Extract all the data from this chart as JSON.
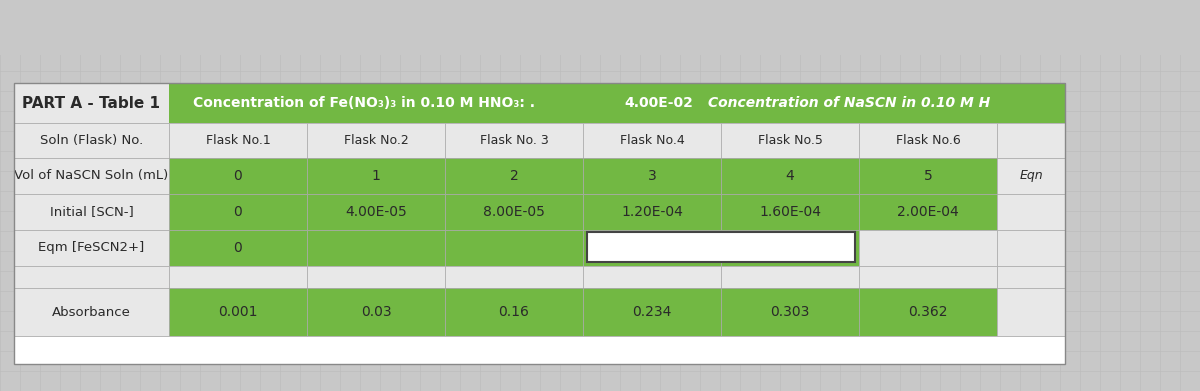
{
  "title": "PART A - Table 1",
  "header_green_text": "Concentration of Fe(NO₃)₃ in 0.10 M HNO₃: .",
  "header_green_value": "4.00E-02",
  "header_green_text2": "Concentration of NaSCN in 0.10 M H",
  "header_right_label": "Eqn",
  "flask_labels": [
    "Flask No.1",
    "Flask No.2",
    "Flask No. 3",
    "Flask No.4",
    "Flask No.5",
    "Flask No.6"
  ],
  "vol_values": [
    "0",
    "1",
    "2",
    "3",
    "4",
    "5"
  ],
  "initial_scn_values": [
    "0",
    "4.00E-05",
    "8.00E-05",
    "1.20E-04",
    "1.60E-04",
    "2.00E-04"
  ],
  "absorbance_values": [
    "0.001",
    "0.03",
    "0.16",
    "0.234",
    "0.303",
    "0.362"
  ],
  "green_color": "#72b843",
  "white_color": "#ffffff",
  "text_dark": "#2a2a2a",
  "bg_color": "#c8c8c8",
  "grid_color": "#b0b0b0",
  "cell_bg": "#e8e8e8"
}
